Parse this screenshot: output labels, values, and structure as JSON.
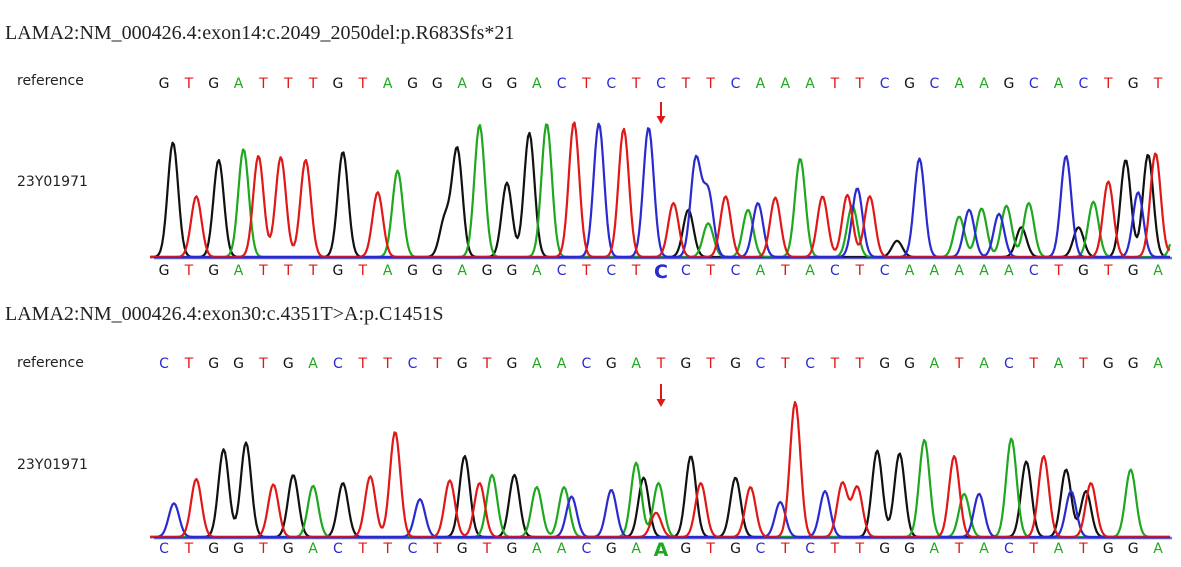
{
  "colors": {
    "A": "#1fa81f",
    "C": "#2a2ad0",
    "G": "#111111",
    "T": "#e01818",
    "baseline": "#666666",
    "arrow": "#e01010"
  },
  "icons": {
    "variant_marker": "red-down-arrow-icon"
  },
  "panels": [
    {
      "title": "LAMA2:NM_000426.4:exon14:c.2049_2050del:p.R683Sfs*21",
      "reference_label": "reference",
      "sample_label": "23Y01971",
      "reference_sequence": "GTGATTTGTAGGAGGACTCTCTTCAAATTCGCAAGCACTGT",
      "sample_sequence": "GTGATTTGTAGGAGGACTCTCCTCATACTCAAAAACTGTGA",
      "variant_index": 20,
      "peaks": {
        "G": [
          [
            0.36,
            0.85
          ],
          [
            2.2,
            0.72
          ],
          [
            7.2,
            0.78
          ],
          [
            11.3,
            0.28
          ],
          [
            11.8,
            0.8
          ],
          [
            13.8,
            0.55
          ],
          [
            14.7,
            0.92
          ],
          [
            21.1,
            0.35
          ],
          [
            29.5,
            0.12
          ],
          [
            34.5,
            0.22
          ],
          [
            36.8,
            0.22
          ],
          [
            38.7,
            0.72
          ],
          [
            39.6,
            0.76
          ]
        ],
        "T": [
          [
            1.3,
            0.45
          ],
          [
            3.8,
            0.75
          ],
          [
            4.7,
            0.74
          ],
          [
            5.7,
            0.72
          ],
          [
            8.6,
            0.48
          ],
          [
            16.5,
            1.0
          ],
          [
            18.5,
            0.95
          ],
          [
            20.5,
            0.4
          ],
          [
            22.6,
            0.45
          ],
          [
            24.6,
            0.44
          ],
          [
            26.5,
            0.45
          ],
          [
            27.5,
            0.46
          ],
          [
            28.4,
            0.45
          ],
          [
            38.0,
            0.56
          ],
          [
            39.9,
            0.77
          ],
          [
            40.9,
            0.28
          ]
        ],
        "A": [
          [
            3.2,
            0.8
          ],
          [
            9.4,
            0.64
          ],
          [
            12.7,
            0.98
          ],
          [
            15.4,
            0.99
          ],
          [
            21.9,
            0.25
          ],
          [
            23.5,
            0.35
          ],
          [
            25.6,
            0.73
          ],
          [
            27.7,
            0.38
          ],
          [
            32.0,
            0.3
          ],
          [
            32.9,
            0.36
          ],
          [
            33.9,
            0.38
          ],
          [
            34.8,
            0.4
          ],
          [
            37.4,
            0.41
          ],
          [
            40.8,
            0.3
          ]
        ],
        "C": [
          [
            17.5,
            0.99
          ],
          [
            19.5,
            0.96
          ],
          [
            21.4,
            0.72
          ],
          [
            21.9,
            0.48
          ],
          [
            23.9,
            0.4
          ],
          [
            27.9,
            0.51
          ],
          [
            30.4,
            0.73
          ],
          [
            32.4,
            0.35
          ],
          [
            33.6,
            0.32
          ],
          [
            36.3,
            0.75
          ],
          [
            39.2,
            0.48
          ]
        ]
      }
    },
    {
      "title": "LAMA2:NM_000426.4:exon30:c.4351T>A:p.C1451S",
      "reference_label": "reference",
      "sample_label": "23Y01971",
      "reference_sequence": "CTGGTGACTTCTGTGAACGATGTGCTCTTGGATACTATGGA",
      "sample_sequence": "CTGGTGACTTCTGTGAACGAAGTGCTCTTGGATACTATGGA",
      "variant_index": 20,
      "peaks": {
        "C": [
          [
            0.4,
            0.25
          ],
          [
            10.3,
            0.28
          ],
          [
            16.4,
            0.3
          ],
          [
            18.0,
            0.35
          ],
          [
            24.8,
            0.26
          ],
          [
            26.6,
            0.34
          ],
          [
            32.8,
            0.32
          ],
          [
            36.5,
            0.34
          ]
        ],
        "T": [
          [
            1.3,
            0.43
          ],
          [
            4.4,
            0.39
          ],
          [
            8.3,
            0.45
          ],
          [
            9.3,
            0.78
          ],
          [
            11.5,
            0.42
          ],
          [
            12.7,
            0.4
          ],
          [
            19.8,
            0.18
          ],
          [
            21.6,
            0.4
          ],
          [
            23.6,
            0.37
          ],
          [
            25.4,
            1.0
          ],
          [
            27.3,
            0.4
          ],
          [
            27.9,
            0.37
          ],
          [
            31.8,
            0.6
          ],
          [
            35.4,
            0.6
          ],
          [
            37.3,
            0.4
          ]
        ],
        "G": [
          [
            2.4,
            0.65
          ],
          [
            3.3,
            0.7
          ],
          [
            5.2,
            0.46
          ],
          [
            7.2,
            0.4
          ],
          [
            12.1,
            0.6
          ],
          [
            14.1,
            0.46
          ],
          [
            19.3,
            0.44
          ],
          [
            21.2,
            0.6
          ],
          [
            23.0,
            0.44
          ],
          [
            28.7,
            0.64
          ],
          [
            29.6,
            0.62
          ],
          [
            34.7,
            0.56
          ],
          [
            36.3,
            0.5
          ],
          [
            37.1,
            0.34
          ]
        ],
        "A": [
          [
            6.0,
            0.38
          ],
          [
            13.2,
            0.46
          ],
          [
            15.0,
            0.37
          ],
          [
            16.1,
            0.37
          ],
          [
            19.0,
            0.55
          ],
          [
            19.9,
            0.4
          ],
          [
            30.6,
            0.72
          ],
          [
            32.2,
            0.32
          ],
          [
            34.1,
            0.73
          ],
          [
            38.9,
            0.5
          ]
        ]
      }
    }
  ]
}
